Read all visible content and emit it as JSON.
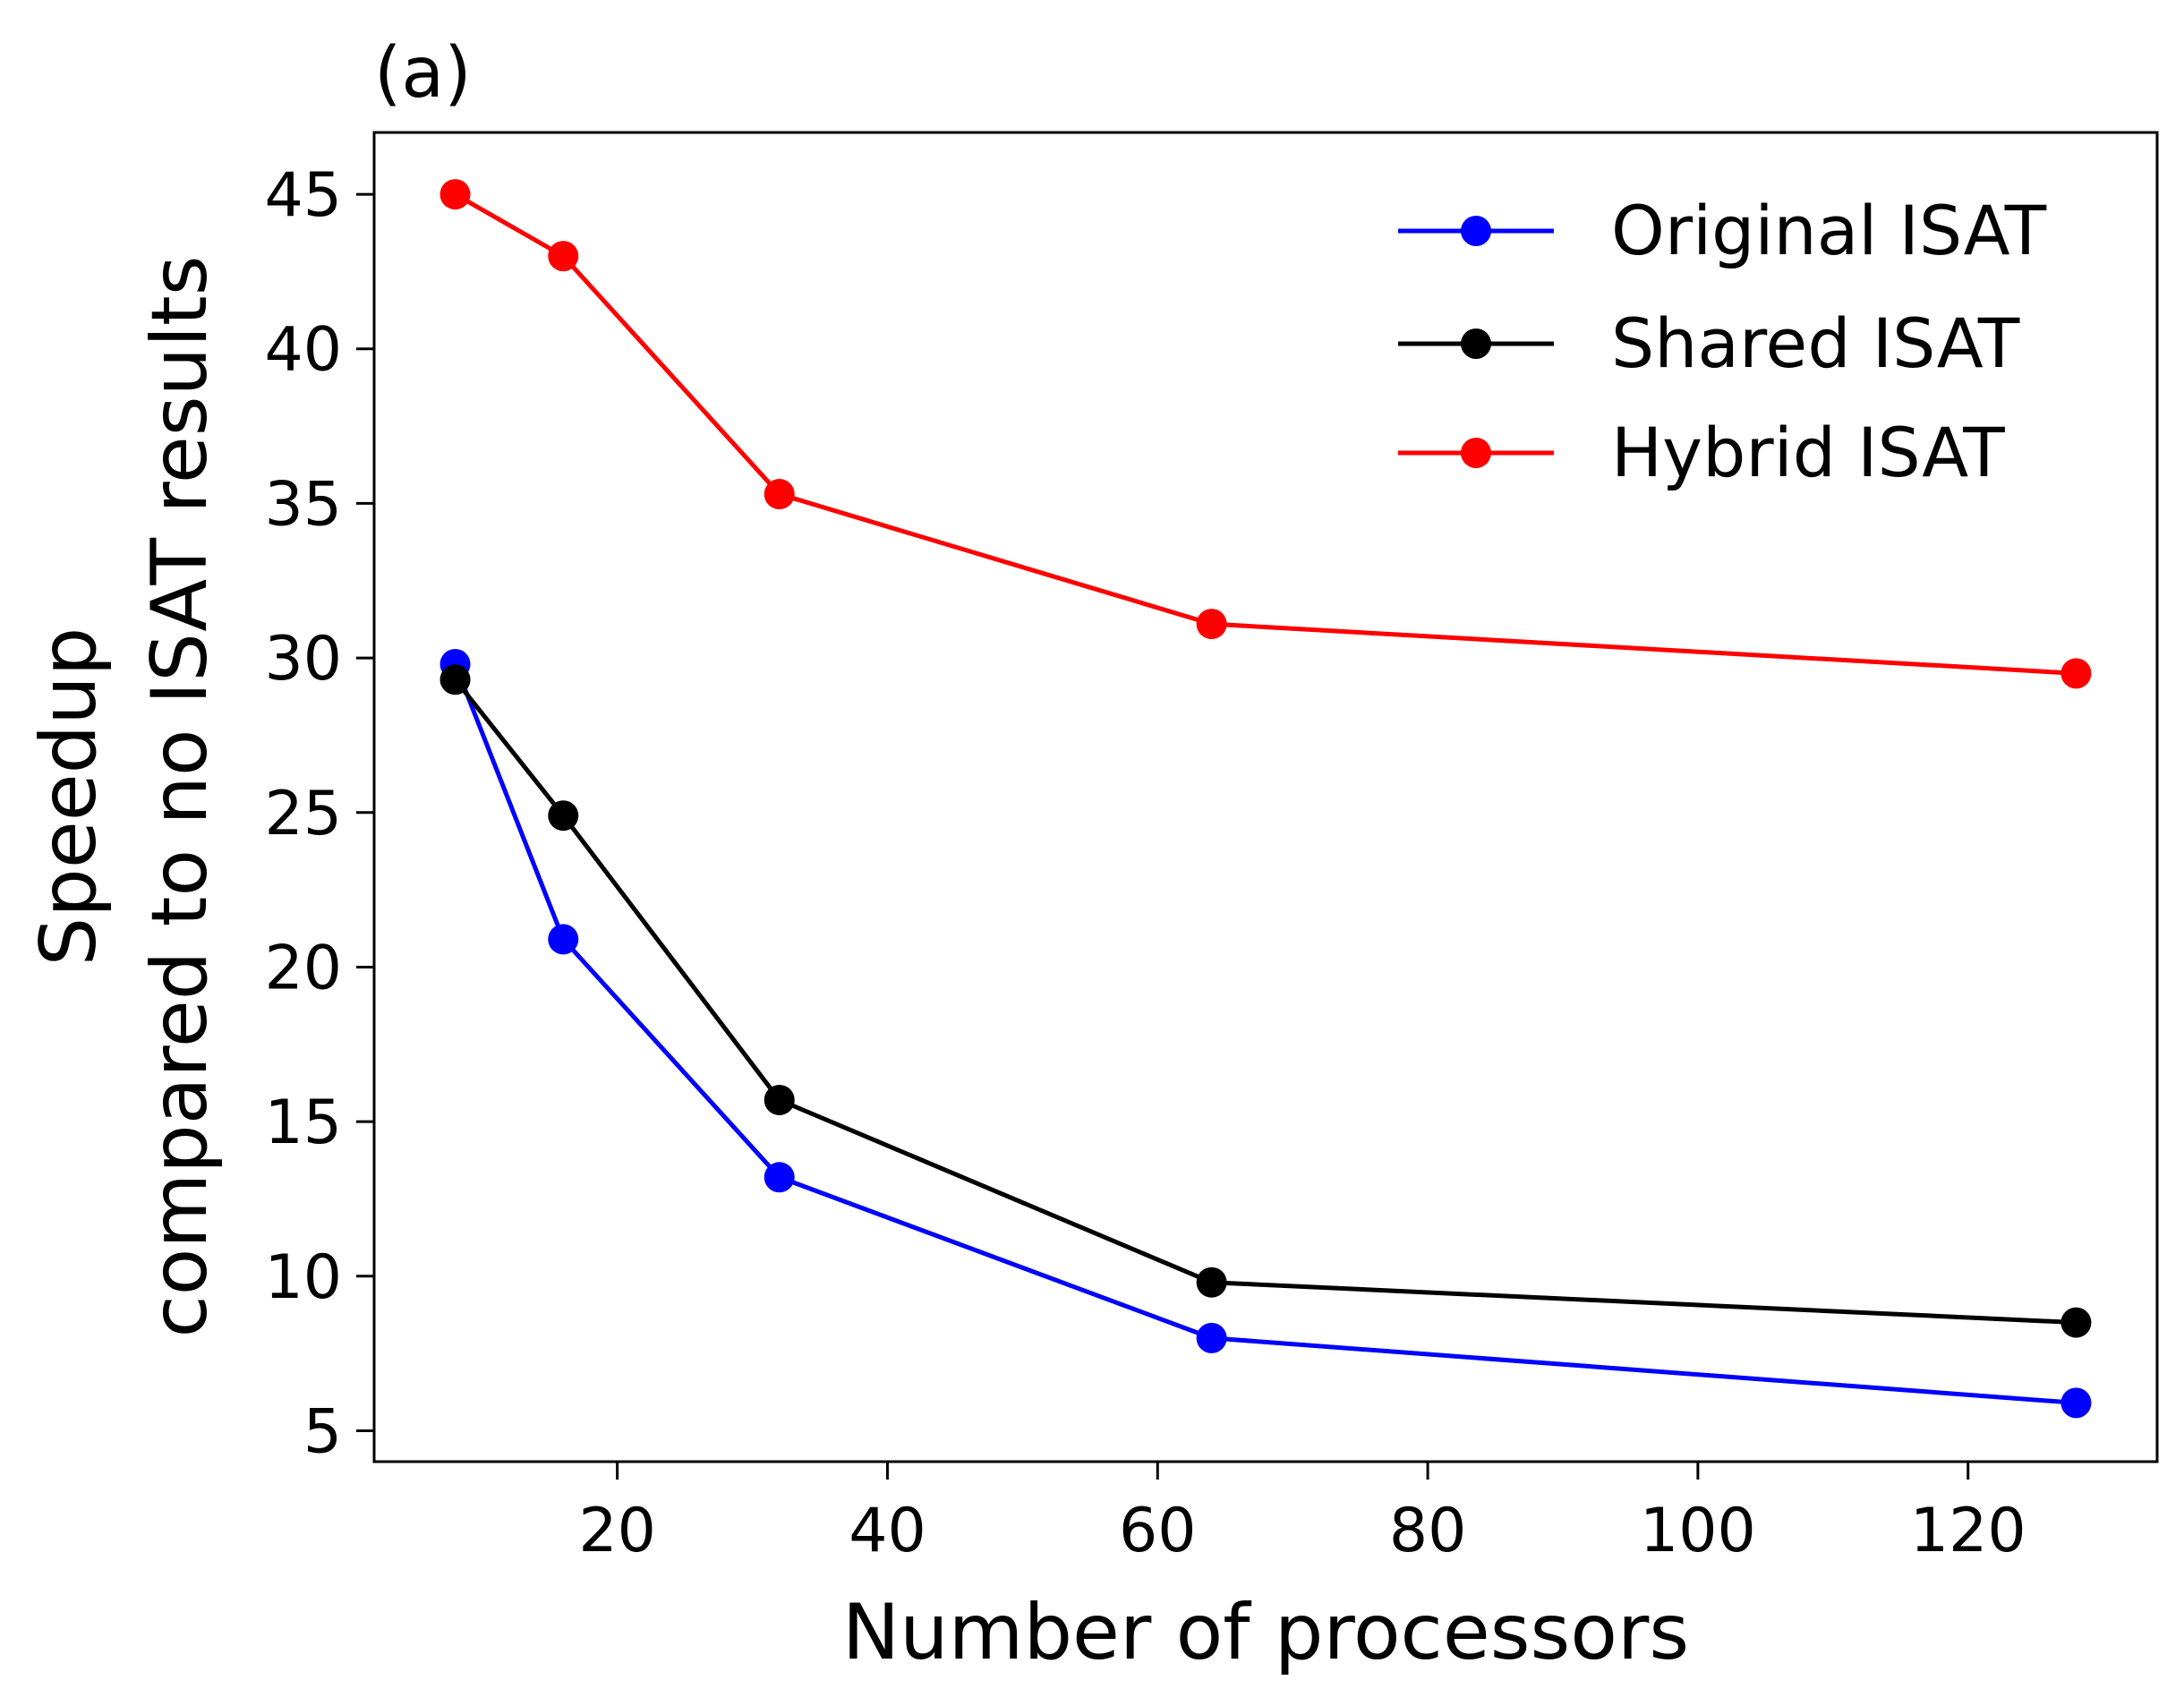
{
  "panel_label": "(a)",
  "chart_data": {
    "type": "line",
    "title": "",
    "xlabel": "Number of processors",
    "ylabel_lines": [
      "Speedup",
      "compared to no ISAT results"
    ],
    "xlim": [
      2.0,
      134.0
    ],
    "ylim": [
      4.0,
      47.0
    ],
    "xticks": [
      20,
      40,
      60,
      80,
      100,
      120
    ],
    "yticks": [
      5,
      10,
      15,
      20,
      25,
      30,
      35,
      40,
      45
    ],
    "x": [
      8,
      16,
      32,
      64,
      128
    ],
    "series": [
      {
        "name": "Original ISAT",
        "color": "#0000ff",
        "values": [
          29.8,
          20.9,
          13.2,
          8.0,
          5.9
        ]
      },
      {
        "name": "Shared ISAT",
        "color": "#000000",
        "values": [
          29.3,
          24.9,
          15.7,
          9.8,
          8.5
        ]
      },
      {
        "name": "Hybrid ISAT",
        "color": "#ff0000",
        "values": [
          45.0,
          43.0,
          35.3,
          31.1,
          29.5
        ]
      }
    ],
    "legend_position": "top-right",
    "grid": false
  }
}
